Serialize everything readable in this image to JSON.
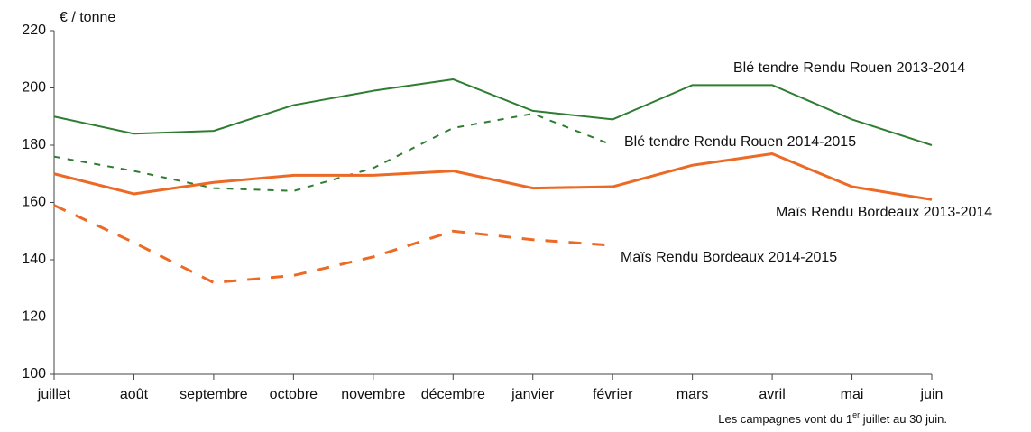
{
  "chart_data": {
    "type": "line",
    "y_axis_label": "€ / tonne",
    "footnote": {
      "before": "Les campagnes vont du 1",
      "sup": "er",
      "after": " juillet au 30 juin."
    },
    "categories": [
      "juillet",
      "août",
      "septembre",
      "octobre",
      "novembre",
      "décembre",
      "janvier",
      "février",
      "mars",
      "avril",
      "mai",
      "juin"
    ],
    "ylim": [
      100,
      220
    ],
    "yticks": [
      100,
      120,
      140,
      160,
      180,
      200,
      220
    ],
    "grid": false,
    "series": [
      {
        "name": "Blé tendre Rendu Rouen 2013-2014",
        "color": "#2e7d32",
        "dashed": false,
        "values": [
          190,
          184,
          185,
          194,
          199,
          203,
          192,
          189,
          201,
          201,
          189,
          180
        ]
      },
      {
        "name": "Blé tendre Rendu Rouen 2014-2015",
        "color": "#2e7d32",
        "dashed": true,
        "values": [
          176,
          171,
          165,
          164,
          172,
          186,
          191,
          180,
          null,
          null,
          null,
          null
        ]
      },
      {
        "name": "Maïs Rendu Bordeaux 2013-2014",
        "color": "#ec6a25",
        "dashed": false,
        "values": [
          170,
          163,
          167,
          169.5,
          169.5,
          171,
          165,
          165.5,
          173,
          177,
          165.5,
          161
        ]
      },
      {
        "name": "Maïs Rendu Bordeaux 2014-2015",
        "color": "#ec6a25",
        "dashed": true,
        "values": [
          159,
          146,
          132,
          134.5,
          141,
          150,
          147,
          145,
          null,
          null,
          null,
          null
        ]
      }
    ]
  }
}
